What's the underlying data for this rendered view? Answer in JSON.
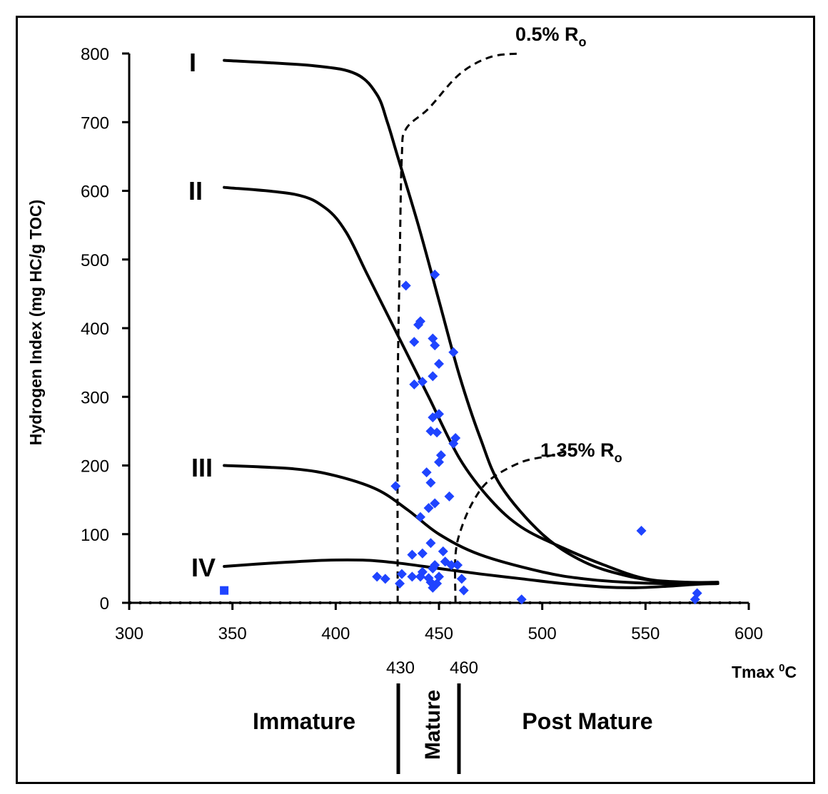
{
  "chart_data": {
    "type": "scatter",
    "xlabel": "Tmax",
    "xlabel_superscript": "0",
    "xlabel_suffix": "C",
    "ylabel": "Hydrogen Index (mg HC/g TOC)",
    "xlim": [
      300,
      600
    ],
    "ylim": [
      0,
      800
    ],
    "x_ticks": [
      300,
      350,
      400,
      450,
      500,
      550,
      600
    ],
    "y_ticks": [
      0,
      100,
      200,
      300,
      400,
      500,
      600,
      700,
      800
    ],
    "grid": false,
    "marker_color": "#1f44ff",
    "curve_color": "#000000",
    "kerogen_curves": [
      {
        "name": "I",
        "points": [
          [
            346,
            790
          ],
          [
            390,
            782
          ],
          [
            410,
            770
          ],
          [
            420,
            740
          ],
          [
            425,
            700
          ],
          [
            430,
            650
          ],
          [
            440,
            550
          ],
          [
            450,
            440
          ],
          [
            460,
            330
          ],
          [
            470,
            240
          ],
          [
            480,
            170
          ],
          [
            500,
            100
          ],
          [
            520,
            60
          ],
          [
            540,
            40
          ],
          [
            560,
            30
          ],
          [
            580,
            28
          ],
          [
            585,
            28
          ]
        ]
      },
      {
        "name": "II",
        "points": [
          [
            346,
            605
          ],
          [
            380,
            595
          ],
          [
            395,
            575
          ],
          [
            405,
            540
          ],
          [
            415,
            480
          ],
          [
            425,
            420
          ],
          [
            435,
            360
          ],
          [
            445,
            300
          ],
          [
            460,
            210
          ],
          [
            475,
            150
          ],
          [
            490,
            110
          ],
          [
            510,
            80
          ],
          [
            530,
            55
          ],
          [
            550,
            35
          ],
          [
            570,
            30
          ],
          [
            585,
            30
          ]
        ]
      },
      {
        "name": "III",
        "points": [
          [
            346,
            200
          ],
          [
            380,
            195
          ],
          [
            400,
            185
          ],
          [
            420,
            165
          ],
          [
            435,
            135
          ],
          [
            450,
            100
          ],
          [
            470,
            70
          ],
          [
            500,
            45
          ],
          [
            520,
            35
          ],
          [
            540,
            30
          ],
          [
            560,
            28
          ],
          [
            585,
            28
          ]
        ]
      },
      {
        "name": "IV",
        "points": [
          [
            346,
            53
          ],
          [
            370,
            58
          ],
          [
            395,
            62
          ],
          [
            415,
            62
          ],
          [
            430,
            58
          ],
          [
            450,
            50
          ],
          [
            470,
            42
          ],
          [
            490,
            35
          ],
          [
            510,
            28
          ],
          [
            530,
            23
          ],
          [
            545,
            22
          ],
          [
            560,
            24
          ],
          [
            575,
            27
          ],
          [
            585,
            28
          ]
        ]
      }
    ],
    "ro_lines": [
      {
        "label": "0.5% R",
        "subscript": "o",
        "points": [
          [
            430,
            0
          ],
          [
            430,
            300
          ],
          [
            431,
            500
          ],
          [
            432,
            650
          ],
          [
            434,
            690
          ],
          [
            445,
            720
          ],
          [
            460,
            770
          ],
          [
            475,
            795
          ],
          [
            490,
            800
          ]
        ]
      },
      {
        "label": "1.35% R",
        "subscript": "o",
        "points": [
          [
            458,
            0
          ],
          [
            458,
            70
          ],
          [
            461,
            110
          ],
          [
            467,
            150
          ],
          [
            475,
            180
          ],
          [
            490,
            205
          ],
          [
            505,
            215
          ],
          [
            515,
            225
          ]
        ]
      }
    ],
    "boundaries": [
      {
        "value": 430,
        "label": "430"
      },
      {
        "value": 460,
        "label": "460"
      }
    ],
    "zones": [
      "Immature",
      "Mature",
      "Post Mature"
    ],
    "points": [
      [
        434,
        462
      ],
      [
        448,
        478
      ],
      [
        441,
        410
      ],
      [
        440,
        405
      ],
      [
        438,
        380
      ],
      [
        447,
        385
      ],
      [
        448,
        375
      ],
      [
        457,
        365
      ],
      [
        450,
        348
      ],
      [
        442,
        322
      ],
      [
        438,
        318
      ],
      [
        447,
        330
      ],
      [
        447,
        270
      ],
      [
        450,
        275
      ],
      [
        449,
        248
      ],
      [
        446,
        250
      ],
      [
        458,
        240
      ],
      [
        457,
        232
      ],
      [
        451,
        215
      ],
      [
        450,
        205
      ],
      [
        444,
        190
      ],
      [
        446,
        175
      ],
      [
        455,
        155
      ],
      [
        448,
        145
      ],
      [
        445,
        138
      ],
      [
        441,
        125
      ],
      [
        429,
        170
      ],
      [
        446,
        87
      ],
      [
        452,
        75
      ],
      [
        442,
        72
      ],
      [
        437,
        70
      ],
      [
        448,
        55
      ],
      [
        453,
        60
      ],
      [
        447,
        50
      ],
      [
        442,
        45
      ],
      [
        456,
        55
      ],
      [
        459,
        55
      ],
      [
        450,
        38
      ],
      [
        446,
        30
      ],
      [
        449,
        28
      ],
      [
        447,
        22
      ],
      [
        441,
        38
      ],
      [
        445,
        36
      ],
      [
        437,
        38
      ],
      [
        432,
        42
      ],
      [
        431,
        28
      ],
      [
        424,
        35
      ],
      [
        420,
        38
      ],
      [
        461,
        35
      ],
      [
        462,
        18
      ],
      [
        490,
        5
      ],
      [
        548,
        105
      ],
      [
        574,
        5
      ],
      [
        575,
        14
      ]
    ],
    "square_points": [
      [
        346,
        18
      ]
    ]
  }
}
